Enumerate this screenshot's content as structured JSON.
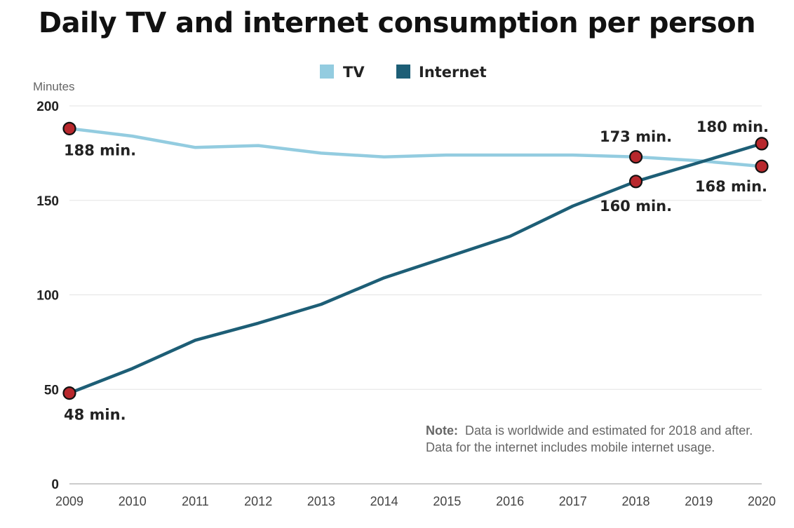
{
  "chart_data": {
    "type": "line",
    "title": "Daily TV and internet consumption per person",
    "ylabel": "Minutes",
    "xlabel": "",
    "ylim": [
      0,
      200
    ],
    "yticks": [
      0,
      50,
      100,
      150,
      200
    ],
    "x": [
      2009,
      2010,
      2011,
      2012,
      2013,
      2014,
      2015,
      2016,
      2017,
      2018,
      2019,
      2020
    ],
    "grid": true,
    "legend_position": "top",
    "series": [
      {
        "name": "TV",
        "color": "#93cce0",
        "values": [
          188,
          184,
          178,
          179,
          175,
          173,
          174,
          174,
          174,
          173,
          171,
          168
        ]
      },
      {
        "name": "Internet",
        "color": "#1d5e76",
        "values": [
          48,
          61,
          76,
          85,
          95,
          109,
          120,
          131,
          147,
          160,
          170,
          180
        ]
      }
    ],
    "annotations": [
      {
        "series": "TV",
        "x": 2009,
        "y": 188,
        "label": "188 min.",
        "position": "below-right"
      },
      {
        "series": "TV",
        "x": 2018,
        "y": 173,
        "label": "173 min.",
        "position": "above"
      },
      {
        "series": "TV",
        "x": 2020,
        "y": 168,
        "label": "168 min.",
        "position": "below-left"
      },
      {
        "series": "Internet",
        "x": 2009,
        "y": 48,
        "label": "48 min.",
        "position": "below-right"
      },
      {
        "series": "Internet",
        "x": 2018,
        "y": 160,
        "label": "160 min.",
        "position": "below"
      },
      {
        "series": "Internet",
        "x": 2020,
        "y": 180,
        "label": "180 min.",
        "position": "above-left"
      }
    ],
    "marker_color": "#b8282d",
    "note": {
      "prefix": "Note:",
      "line1": "Data is worldwide and estimated for 2018 and after.",
      "line2": "Data for the internet includes mobile internet usage."
    }
  }
}
